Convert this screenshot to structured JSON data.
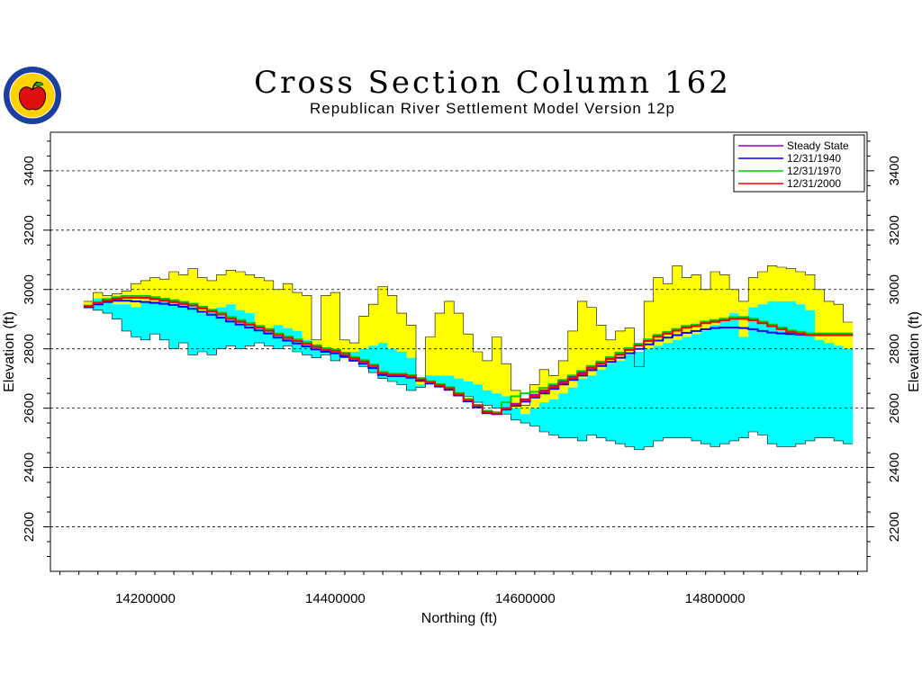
{
  "chart_data": {
    "type": "area",
    "title": "Cross Section Column 162",
    "subtitle": "Republican River Settlement Model Version 12p",
    "xlabel": "Northing (ft)",
    "ylabel": "Elevation (ft)",
    "xlim": [
      14100000,
      14960000
    ],
    "ylim": [
      2050,
      3530
    ],
    "x_ticks": [
      14200000,
      14400000,
      14600000,
      14800000
    ],
    "x_tick_labels": [
      "14200000",
      "14400000",
      "14600000",
      "14800000"
    ],
    "y_ticks": [
      2200,
      2400,
      2600,
      2800,
      3000,
      3200,
      3400
    ],
    "y_tick_labels": [
      "2200",
      "2400",
      "2600",
      "2800",
      "3000",
      "3200",
      "3400"
    ],
    "grid": "horizontal dashed at each y tick",
    "legend_position": "top-right",
    "colors": {
      "top_layer_fill": "#ffff00",
      "aquifer_fill": "#00ffff",
      "steady_state": "#9900cc",
      "y1940": "#0000ff",
      "y1970": "#00cc00",
      "y2000": "#ff0000"
    },
    "x": [
      14140000,
      14150000,
      14160000,
      14170000,
      14180000,
      14190000,
      14200000,
      14210000,
      14220000,
      14230000,
      14240000,
      14250000,
      14260000,
      14270000,
      14280000,
      14290000,
      14300000,
      14310000,
      14320000,
      14330000,
      14340000,
      14350000,
      14360000,
      14370000,
      14380000,
      14390000,
      14400000,
      14410000,
      14420000,
      14430000,
      14440000,
      14450000,
      14460000,
      14470000,
      14480000,
      14490000,
      14500000,
      14510000,
      14520000,
      14530000,
      14540000,
      14550000,
      14560000,
      14570000,
      14580000,
      14590000,
      14600000,
      14610000,
      14620000,
      14630000,
      14640000,
      14650000,
      14660000,
      14670000,
      14680000,
      14690000,
      14700000,
      14710000,
      14720000,
      14730000,
      14740000,
      14750000,
      14760000,
      14770000,
      14780000,
      14790000,
      14800000,
      14810000,
      14820000,
      14830000,
      14840000,
      14850000,
      14860000,
      14870000,
      14880000,
      14890000,
      14900000,
      14910000,
      14920000,
      14930000,
      14940000
    ],
    "land_surface": [
      2960,
      2990,
      2980,
      2985,
      2995,
      3020,
      3030,
      3040,
      3035,
      3060,
      3050,
      3070,
      3040,
      3030,
      3050,
      3065,
      3060,
      3050,
      3040,
      3030,
      3000,
      3020,
      2990,
      2980,
      2830,
      2980,
      2990,
      2830,
      2820,
      2910,
      2950,
      3010,
      2980,
      2920,
      2880,
      2690,
      2840,
      2920,
      2960,
      2920,
      2850,
      2790,
      2760,
      2840,
      2750,
      2660,
      2610,
      2680,
      2730,
      2710,
      2760,
      2860,
      2960,
      2940,
      2880,
      2830,
      2860,
      2870,
      2740,
      2960,
      3040,
      3020,
      3080,
      3040,
      3050,
      3000,
      3060,
      3050,
      3000,
      2960,
      3040,
      3060,
      3080,
      3075,
      3070,
      3060,
      3050,
      3000,
      2960,
      2950,
      2890
    ],
    "layer_base": [
      2940,
      2970,
      2960,
      2950,
      2950,
      2940,
      2955,
      2960,
      2965,
      2950,
      2960,
      2955,
      2920,
      2930,
      2940,
      2950,
      2930,
      2920,
      2880,
      2870,
      2880,
      2870,
      2860,
      2830,
      2810,
      2790,
      2800,
      2780,
      2790,
      2800,
      2810,
      2820,
      2800,
      2790,
      2770,
      2680,
      2710,
      2710,
      2710,
      2700,
      2690,
      2680,
      2660,
      2650,
      2640,
      2600,
      2580,
      2600,
      2620,
      2630,
      2650,
      2670,
      2700,
      2710,
      2730,
      2750,
      2760,
      2780,
      2790,
      2800,
      2810,
      2820,
      2830,
      2840,
      2850,
      2860,
      2880,
      2900,
      2920,
      2840,
      2940,
      2950,
      2960,
      2960,
      2960,
      2950,
      2930,
      2830,
      2820,
      2810,
      2800
    ],
    "aquifer_base": [
      2940,
      2930,
      2920,
      2900,
      2860,
      2840,
      2830,
      2850,
      2830,
      2800,
      2820,
      2780,
      2790,
      2780,
      2800,
      2810,
      2800,
      2810,
      2820,
      2810,
      2800,
      2810,
      2790,
      2780,
      2770,
      2780,
      2760,
      2770,
      2760,
      2740,
      2720,
      2700,
      2690,
      2680,
      2660,
      2670,
      2690,
      2680,
      2660,
      2650,
      2640,
      2620,
      2610,
      2600,
      2580,
      2560,
      2550,
      2540,
      2520,
      2510,
      2500,
      2500,
      2490,
      2510,
      2500,
      2490,
      2480,
      2470,
      2460,
      2470,
      2490,
      2500,
      2500,
      2500,
      2490,
      2480,
      2470,
      2480,
      2490,
      2500,
      2520,
      2510,
      2480,
      2470,
      2470,
      2480,
      2490,
      2500,
      2500,
      2490,
      2480
    ],
    "series": [
      {
        "name": "Steady State",
        "values": [
          2945,
          2955,
          2965,
          2970,
          2975,
          2975,
          2975,
          2970,
          2965,
          2960,
          2955,
          2950,
          2940,
          2930,
          2920,
          2905,
          2895,
          2885,
          2875,
          2865,
          2850,
          2840,
          2830,
          2820,
          2810,
          2800,
          2795,
          2785,
          2770,
          2760,
          2745,
          2720,
          2715,
          2715,
          2710,
          2700,
          2690,
          2680,
          2670,
          2650,
          2630,
          2610,
          2590,
          2585,
          2600,
          2615,
          2630,
          2645,
          2660,
          2675,
          2690,
          2705,
          2720,
          2740,
          2755,
          2770,
          2785,
          2800,
          2815,
          2830,
          2845,
          2855,
          2865,
          2875,
          2880,
          2890,
          2895,
          2900,
          2905,
          2905,
          2900,
          2890,
          2880,
          2870,
          2860,
          2855,
          2850,
          2850,
          2850,
          2850,
          2850
        ]
      },
      {
        "name": "12/31/1940",
        "values": [
          2940,
          2950,
          2958,
          2962,
          2962,
          2960,
          2958,
          2955,
          2952,
          2948,
          2942,
          2935,
          2925,
          2915,
          2905,
          2892,
          2882,
          2872,
          2862,
          2852,
          2838,
          2828,
          2818,
          2808,
          2798,
          2790,
          2785,
          2775,
          2760,
          2750,
          2735,
          2712,
          2708,
          2708,
          2703,
          2693,
          2683,
          2673,
          2663,
          2643,
          2623,
          2603,
          2583,
          2580,
          2595,
          2608,
          2622,
          2636,
          2650,
          2665,
          2680,
          2695,
          2710,
          2728,
          2742,
          2756,
          2770,
          2785,
          2800,
          2815,
          2828,
          2838,
          2846,
          2854,
          2860,
          2866,
          2870,
          2872,
          2872,
          2870,
          2866,
          2860,
          2855,
          2852,
          2850,
          2848,
          2848,
          2848,
          2848,
          2848,
          2848
        ]
      },
      {
        "name": "12/31/1970",
        "values": [
          2946,
          2958,
          2968,
          2974,
          2978,
          2978,
          2978,
          2974,
          2969,
          2964,
          2958,
          2952,
          2942,
          2932,
          2922,
          2907,
          2897,
          2887,
          2877,
          2867,
          2852,
          2842,
          2832,
          2822,
          2812,
          2802,
          2797,
          2787,
          2772,
          2762,
          2747,
          2722,
          2716,
          2716,
          2711,
          2701,
          2691,
          2681,
          2671,
          2651,
          2631,
          2611,
          2591,
          2586,
          2620,
          2640,
          2650,
          2655,
          2668,
          2680,
          2695,
          2710,
          2725,
          2742,
          2757,
          2772,
          2787,
          2802,
          2817,
          2832,
          2847,
          2857,
          2867,
          2877,
          2882,
          2892,
          2897,
          2902,
          2907,
          2907,
          2902,
          2892,
          2882,
          2872,
          2862,
          2857,
          2852,
          2852,
          2852,
          2852,
          2852
        ]
      },
      {
        "name": "12/31/2000",
        "values": [
          2944,
          2954,
          2963,
          2968,
          2972,
          2972,
          2971,
          2967,
          2962,
          2957,
          2951,
          2946,
          2936,
          2926,
          2916,
          2901,
          2891,
          2881,
          2871,
          2861,
          2846,
          2836,
          2826,
          2816,
          2806,
          2796,
          2792,
          2782,
          2767,
          2757,
          2742,
          2717,
          2712,
          2712,
          2707,
          2697,
          2687,
          2677,
          2667,
          2647,
          2627,
          2607,
          2587,
          2582,
          2598,
          2612,
          2626,
          2640,
          2655,
          2670,
          2685,
          2700,
          2715,
          2735,
          2750,
          2765,
          2780,
          2796,
          2811,
          2826,
          2841,
          2851,
          2861,
          2871,
          2876,
          2886,
          2891,
          2896,
          2901,
          2901,
          2896,
          2886,
          2876,
          2866,
          2856,
          2851,
          2846,
          2846,
          2846,
          2846,
          2846
        ]
      }
    ]
  }
}
